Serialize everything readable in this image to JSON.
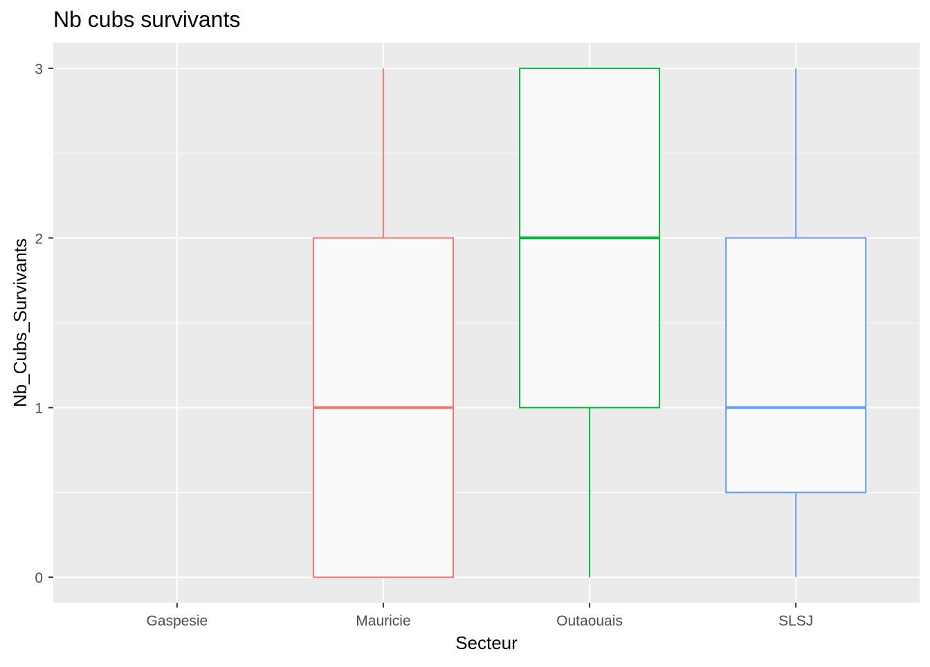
{
  "chart_data": {
    "type": "boxplot",
    "title": "Nb cubs survivants",
    "xlabel": "Secteur",
    "ylabel": "Nb_Cubs_Survivants",
    "categories": [
      "Gaspesie",
      "Mauricie",
      "Outaouais",
      "SLSJ"
    ],
    "ylim": [
      -0.15,
      3.15
    ],
    "yticks": [
      0,
      1,
      2,
      3
    ],
    "grid": true,
    "legend": "none",
    "panel_background": "#EBEBEB",
    "grid_color": "#FFFFFF",
    "box_fill": "#FAFAFA",
    "series": [
      {
        "category": "Gaspesie",
        "present": false
      },
      {
        "category": "Mauricie",
        "present": true,
        "min": 0,
        "q1": 0,
        "median": 1,
        "q3": 2,
        "max": 3,
        "color": "#F8766D"
      },
      {
        "category": "Outaouais",
        "present": true,
        "min": 0,
        "q1": 1,
        "median": 2,
        "q3": 3,
        "max": 3,
        "color": "#00BA38"
      },
      {
        "category": "SLSJ",
        "present": true,
        "min": 0,
        "q1": 0.5,
        "median": 1,
        "q3": 2,
        "max": 3,
        "color": "#619CFF"
      }
    ]
  }
}
